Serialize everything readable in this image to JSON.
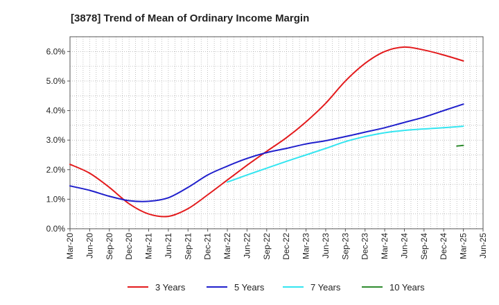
{
  "chart_data": {
    "type": "line",
    "title": "[3878]  Trend of Mean of Ordinary Income Margin",
    "xlabel": "",
    "ylabel": "",
    "x": [
      "Mar-20",
      "Jun-20",
      "Sep-20",
      "Dec-20",
      "Mar-21",
      "Jun-21",
      "Sep-21",
      "Dec-21",
      "Mar-22",
      "Jun-22",
      "Sep-22",
      "Dec-22",
      "Mar-23",
      "Jun-23",
      "Sep-23",
      "Dec-23",
      "Mar-24",
      "Jun-24",
      "Sep-24",
      "Dec-24",
      "Mar-25",
      "Jun-25"
    ],
    "y_ticks": [
      "0.0%",
      "1.0%",
      "2.0%",
      "3.0%",
      "4.0%",
      "5.0%",
      "6.0%"
    ],
    "ylim": [
      0,
      6.5
    ],
    "grid": true,
    "legend_position": "bottom",
    "series": [
      {
        "name": "3 Years",
        "color": "#e31a1c",
        "values": [
          2.18,
          1.88,
          1.4,
          0.85,
          0.5,
          0.42,
          0.68,
          1.15,
          1.65,
          2.15,
          2.62,
          3.08,
          3.62,
          4.25,
          5.0,
          5.6,
          6.0,
          6.15,
          6.05,
          5.88,
          5.68,
          null
        ]
      },
      {
        "name": "5 Years",
        "color": "#1f1fcc",
        "values": [
          1.45,
          1.3,
          1.1,
          0.95,
          0.93,
          1.05,
          1.4,
          1.82,
          2.12,
          2.38,
          2.58,
          2.72,
          2.87,
          2.98,
          3.12,
          3.27,
          3.42,
          3.6,
          3.78,
          4.0,
          4.22,
          null
        ]
      },
      {
        "name": "7 Years",
        "color": "#33e5f0",
        "values": [
          null,
          null,
          null,
          null,
          null,
          null,
          null,
          null,
          1.58,
          1.82,
          2.05,
          2.28,
          2.5,
          2.72,
          2.95,
          3.12,
          3.25,
          3.33,
          3.38,
          3.42,
          3.47,
          null
        ]
      },
      {
        "name": "10 Years",
        "color": "#2e8b2e",
        "values": [
          null,
          null,
          null,
          null,
          null,
          null,
          null,
          null,
          null,
          null,
          null,
          null,
          null,
          null,
          null,
          null,
          null,
          null,
          null,
          null,
          2.82,
          null
        ],
        "start_value": 2.8
      }
    ]
  }
}
